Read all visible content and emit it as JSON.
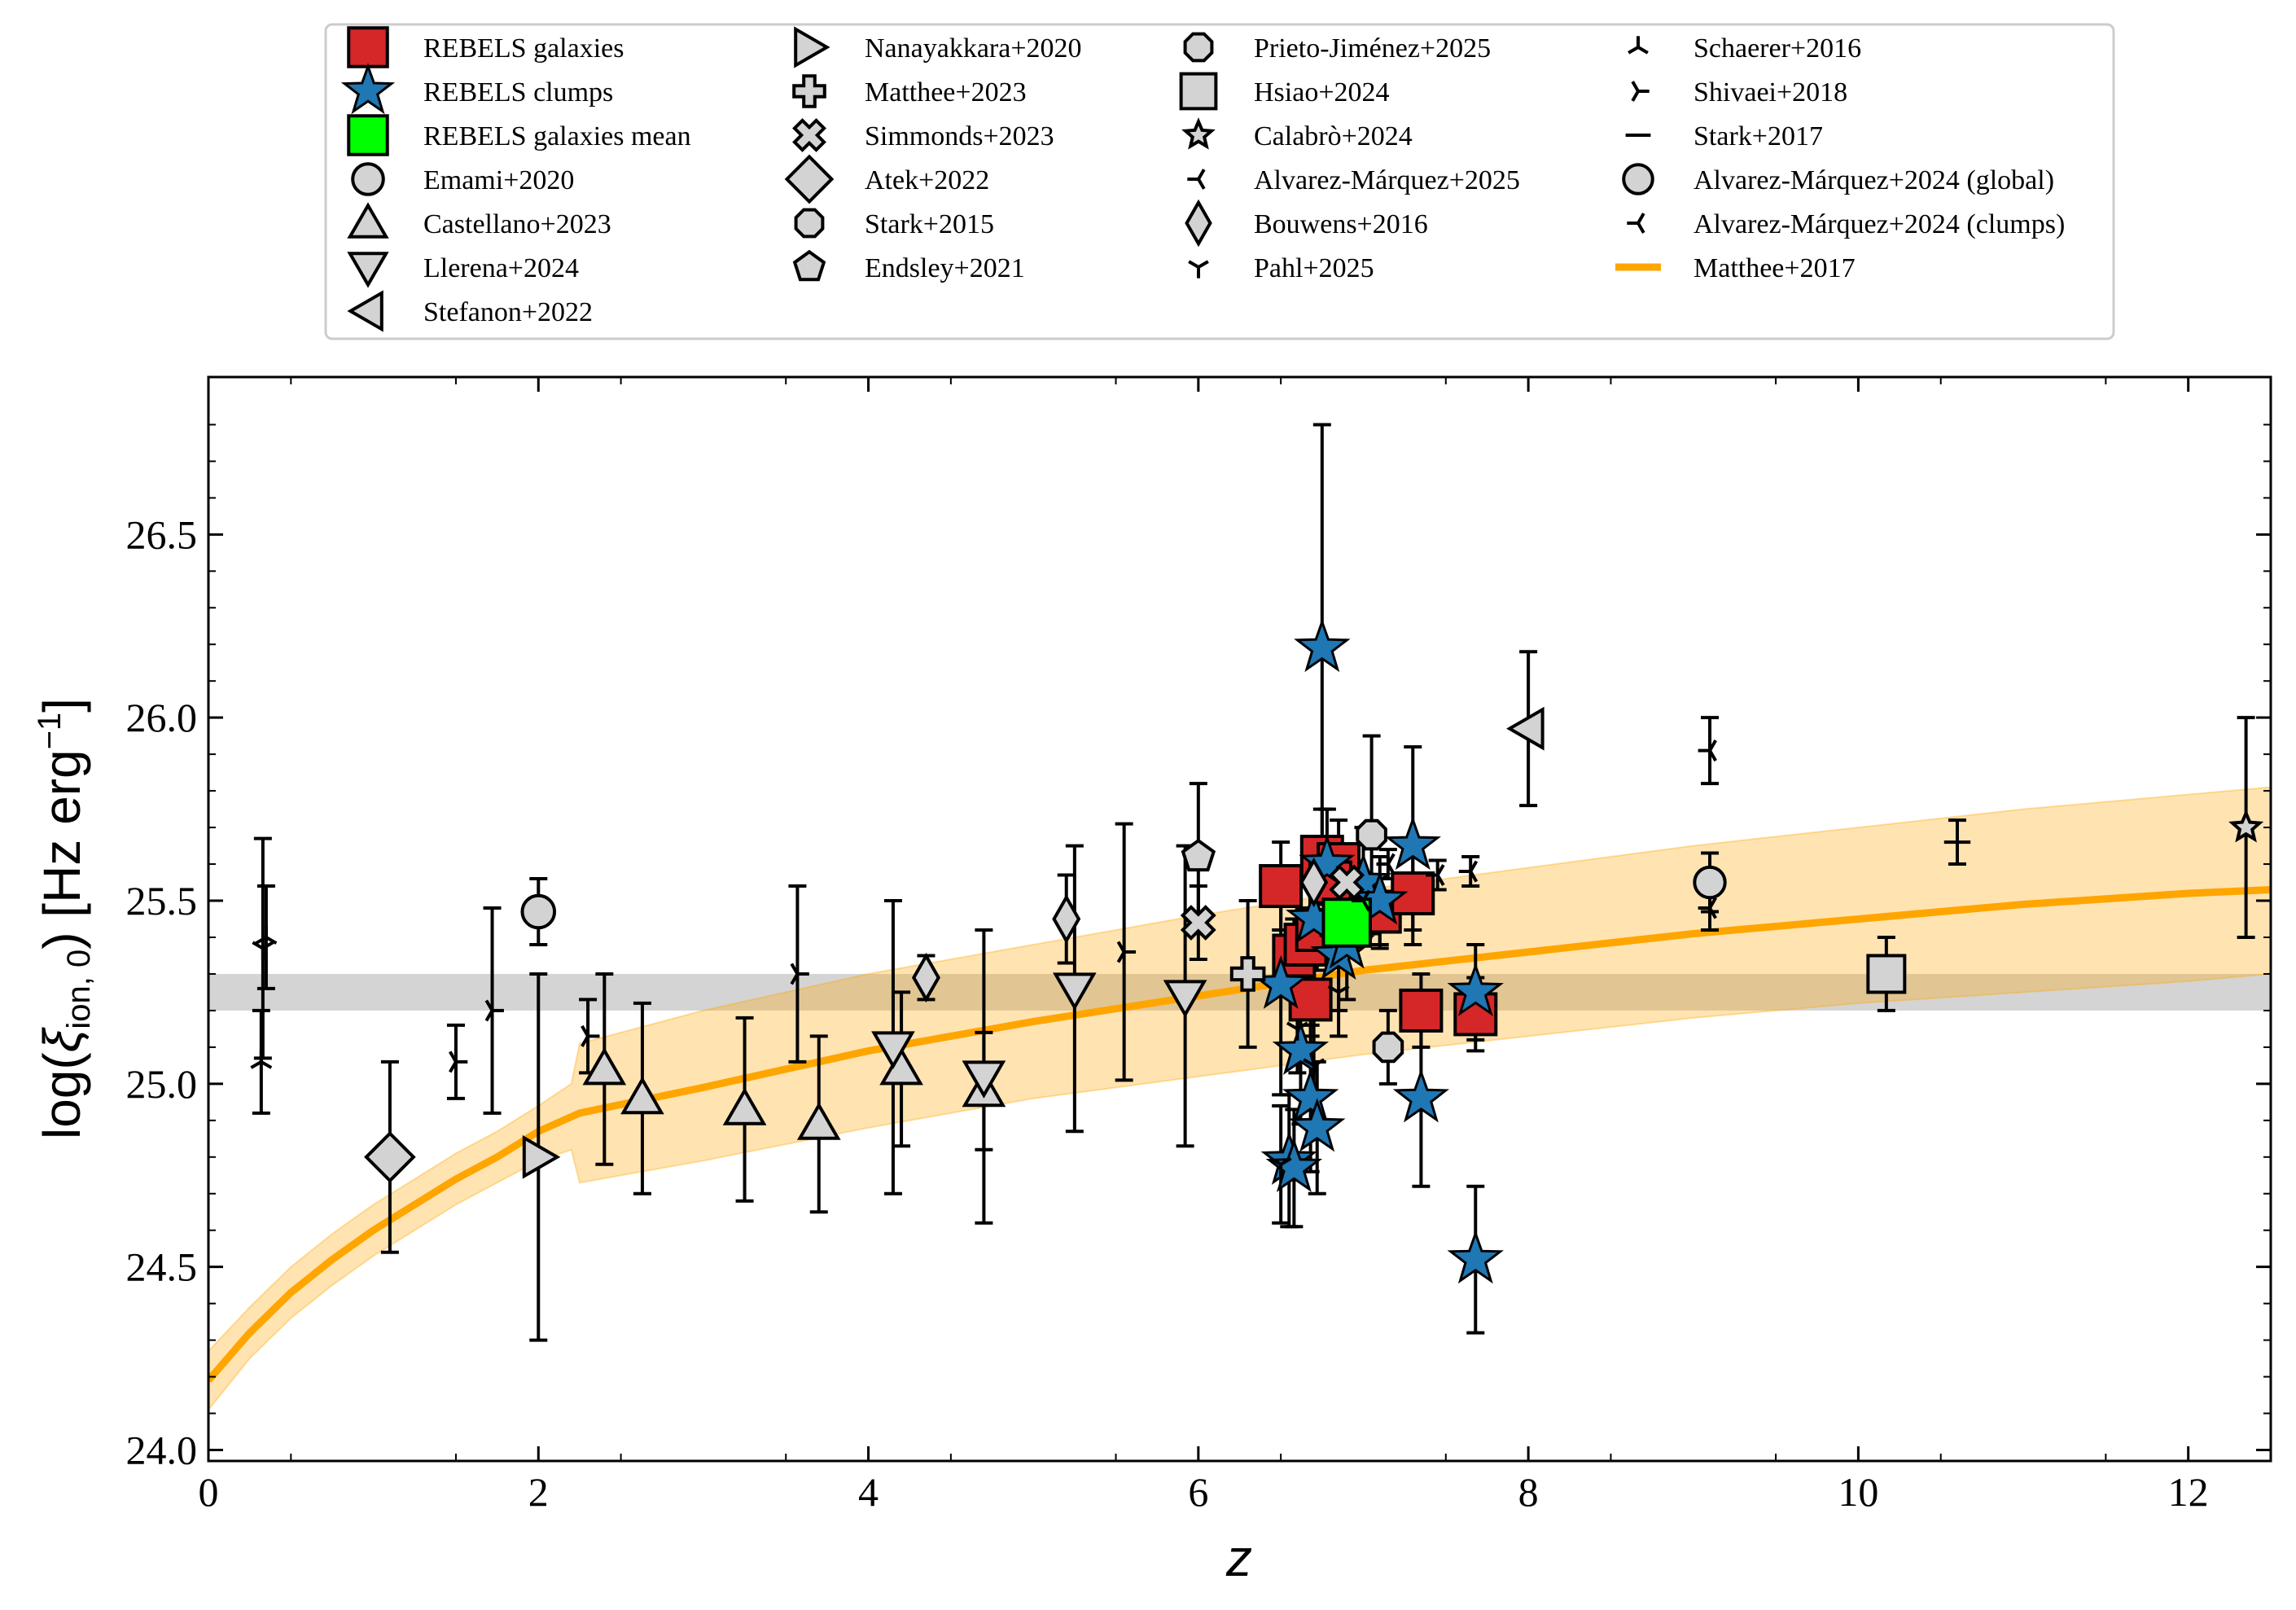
{
  "chart_data": {
    "type": "scatter",
    "title": "",
    "xlabel": "z",
    "ylabel": "log(ξion,0) [Hz erg−1]",
    "ylabel_parts": {
      "pre": "log(",
      "xi": "ξ",
      "sub": "ion, 0",
      "mid": ") [Hz erg",
      "sup": "−1",
      "post": "]"
    },
    "xlim": [
      0,
      12.5
    ],
    "ylim": [
      23.97,
      26.93
    ],
    "x_ticks": [
      0,
      2,
      4,
      6,
      8,
      10,
      12
    ],
    "y_ticks": [
      24.0,
      24.5,
      25.0,
      25.5,
      26.0,
      26.5
    ],
    "x_tick_labels": [
      "0",
      "2",
      "4",
      "6",
      "8",
      "10",
      "12"
    ],
    "y_tick_labels": [
      "24.0",
      "24.5",
      "25.0",
      "25.5",
      "26.0",
      "26.5"
    ],
    "grid": false,
    "legend_location": "top (outside plot)",
    "reference_band": {
      "y_low": 25.2,
      "y_high": 25.3,
      "color": "#b0b0b0"
    },
    "model_curve": {
      "name": "Matthee+2017",
      "color": "#ffa500",
      "x": [
        0,
        0.25,
        0.5,
        0.75,
        1.0,
        1.25,
        1.5,
        1.75,
        2.0,
        2.2,
        2.25,
        3,
        4,
        5,
        6,
        7,
        8,
        9,
        10,
        11,
        12,
        12.5
      ],
      "y": [
        24.19,
        24.32,
        24.43,
        24.52,
        24.6,
        24.67,
        24.74,
        24.8,
        24.87,
        24.91,
        24.92,
        24.99,
        25.09,
        25.17,
        25.24,
        25.31,
        25.36,
        25.41,
        25.45,
        25.49,
        25.52,
        25.53
      ],
      "y_low": [
        24.11,
        24.25,
        24.36,
        24.45,
        24.53,
        24.6,
        24.67,
        24.73,
        24.79,
        24.82,
        24.73,
        24.79,
        24.88,
        24.96,
        25.02,
        25.08,
        25.13,
        25.18,
        25.22,
        25.25,
        25.28,
        25.3
      ],
      "y_high": [
        24.27,
        24.39,
        24.5,
        24.59,
        24.67,
        24.74,
        24.81,
        24.87,
        24.94,
        25.0,
        25.11,
        25.2,
        25.3,
        25.38,
        25.46,
        25.53,
        25.59,
        25.65,
        25.7,
        25.75,
        25.79,
        25.81
      ]
    },
    "series": [
      {
        "name": "REBELS galaxies",
        "marker": "square",
        "color": "#d62728",
        "size": 1.0,
        "points": [
          [
            6.5,
            25.54,
            0.12
          ],
          [
            6.58,
            25.35,
            0.1
          ],
          [
            6.65,
            25.38,
            0.1
          ],
          [
            6.68,
            25.23,
            0.1
          ],
          [
            6.72,
            25.42,
            0.11
          ],
          [
            6.75,
            25.62,
            0.13
          ],
          [
            6.85,
            25.6,
            0.12
          ],
          [
            7.1,
            25.47,
            0.1
          ],
          [
            7.3,
            25.52,
            0.1
          ],
          [
            7.35,
            25.2,
            0.1
          ],
          [
            7.68,
            25.19,
            0.1
          ],
          [
            6.8,
            25.55,
            0.12
          ]
        ]
      },
      {
        "name": "REBELS clumps",
        "marker": "star",
        "color": "#1f77b4",
        "size": 1.0,
        "points": [
          [
            6.75,
            26.19,
            0.61
          ],
          [
            6.5,
            25.27,
            0.3
          ],
          [
            6.55,
            24.79,
            0.18
          ],
          [
            6.58,
            24.77,
            0.16
          ],
          [
            6.62,
            25.09,
            0.2
          ],
          [
            6.68,
            24.96,
            0.2
          ],
          [
            6.72,
            24.88,
            0.18
          ],
          [
            6.85,
            25.35,
            0.15
          ],
          [
            6.9,
            25.38,
            0.15
          ],
          [
            7.3,
            25.65,
            0.27
          ],
          [
            7.35,
            24.96,
            0.24
          ],
          [
            7.68,
            24.52,
            0.2
          ],
          [
            7.68,
            25.25,
            0.13
          ],
          [
            6.78,
            25.6,
            0.15
          ],
          [
            7.0,
            25.55,
            0.15
          ],
          [
            7.1,
            25.5,
            0.12
          ],
          [
            6.7,
            25.45,
            0.2
          ]
        ]
      },
      {
        "name": "REBELS galaxies mean",
        "marker": "square",
        "color": "#00ff00",
        "size": 1.15,
        "points": [
          [
            6.9,
            25.44,
            0.06
          ]
        ]
      },
      {
        "name": "Emami+2020",
        "marker": "circle",
        "color": "#d3d3d3",
        "size": 0.9,
        "points": [
          [
            2.0,
            25.47,
            0.09
          ]
        ]
      },
      {
        "name": "Castellano+2023",
        "marker": "triangle-up",
        "color": "#d3d3d3",
        "size": 1.0,
        "points": [
          [
            2.4,
            25.04,
            0.26
          ],
          [
            2.63,
            24.96,
            0.26
          ],
          [
            3.25,
            24.93,
            0.25
          ],
          [
            3.7,
            24.89,
            0.24
          ],
          [
            4.2,
            25.04,
            0.21
          ],
          [
            4.7,
            24.98,
            0.16
          ]
        ]
      },
      {
        "name": "Llerena+2024",
        "marker": "triangle-down",
        "color": "#d3d3d3",
        "size": 1.0,
        "points": [
          [
            4.15,
            25.1,
            0.4
          ],
          [
            4.7,
            25.02,
            0.4
          ],
          [
            5.25,
            25.26,
            0.39
          ],
          [
            5.92,
            25.24,
            0.41
          ]
        ]
      },
      {
        "name": "Stefanon+2022",
        "marker": "triangle-left",
        "color": "#d3d3d3",
        "size": 1.0,
        "points": [
          [
            8.0,
            25.97,
            0.21
          ]
        ]
      },
      {
        "name": "Nanayakkara+2020",
        "marker": "triangle-right",
        "color": "#d3d3d3",
        "size": 1.0,
        "points": [
          [
            2.0,
            24.8,
            0.5
          ]
        ]
      },
      {
        "name": "Matthee+2023",
        "marker": "plus",
        "color": "#d3d3d3",
        "size": 0.9,
        "points": [
          [
            6.3,
            25.3,
            0.2
          ]
        ]
      },
      {
        "name": "Simmonds+2023",
        "marker": "x",
        "color": "#d3d3d3",
        "size": 0.9,
        "points": [
          [
            6.0,
            25.44,
            0.1
          ],
          [
            6.9,
            25.55,
            0.1
          ]
        ]
      },
      {
        "name": "Atek+2022",
        "marker": "diamond",
        "color": "#d3d3d3",
        "size": 1.0,
        "points": [
          [
            1.1,
            24.8,
            0.26
          ]
        ]
      },
      {
        "name": "Stark+2015",
        "marker": "octagon",
        "color": "#d3d3d3",
        "size": 0.85,
        "points": [
          [
            7.15,
            25.1,
            0.1
          ]
        ]
      },
      {
        "name": "Endsley+2021",
        "marker": "pentagon",
        "color": "#d3d3d3",
        "size": 0.9,
        "points": [
          [
            6.0,
            25.62,
            0.2
          ]
        ]
      },
      {
        "name": "Prieto-Jiménez+2025",
        "marker": "octagon",
        "color": "#d3d3d3",
        "size": 0.85,
        "points": [
          [
            7.05,
            25.68,
            0.27
          ]
        ]
      },
      {
        "name": "Hsiao+2024",
        "marker": "square",
        "color": "#d3d3d3",
        "size": 0.9,
        "points": [
          [
            10.17,
            25.3,
            0.1
          ]
        ]
      },
      {
        "name": "Calabrò+2024",
        "marker": "star-open",
        "color": "#d3d3d3",
        "size": 0.8,
        "points": [
          [
            12.35,
            25.7,
            0.3
          ]
        ]
      },
      {
        "name": "Alvarez-Márquez+2025",
        "marker": "tri-left",
        "color": "#000000",
        "size": 0.9,
        "points": [
          [
            7.15,
            25.6,
            0.04
          ],
          [
            7.65,
            25.58,
            0.04
          ],
          [
            7.45,
            25.57,
            0.04
          ],
          [
            7.0,
            25.5,
            0.05
          ]
        ]
      },
      {
        "name": "Bouwens+2016",
        "marker": "thin-diamond",
        "color": "#d3d3d3",
        "size": 0.95,
        "points": [
          [
            4.35,
            25.29,
            0.06
          ],
          [
            5.2,
            25.45,
            0.12
          ],
          [
            6.7,
            25.55,
            0.1
          ]
        ]
      },
      {
        "name": "Pahl+2025",
        "marker": "tri-down",
        "color": "#000000",
        "size": 0.9,
        "points": [
          [
            0.33,
            25.37,
            0.3
          ],
          [
            6.7,
            25.05,
            0.2
          ],
          [
            6.5,
            24.78,
            0.16
          ],
          [
            6.6,
            25.15,
            0.12
          ],
          [
            6.85,
            25.25,
            0.12
          ]
        ]
      },
      {
        "name": "Schaerer+2016",
        "marker": "tri-up",
        "color": "#000000",
        "size": 0.9,
        "points": [
          [
            0.32,
            25.06,
            0.14
          ],
          [
            0.35,
            25.4,
            0.14
          ]
        ]
      },
      {
        "name": "Shivaei+2018",
        "marker": "tri-right",
        "color": "#000000",
        "size": 0.9,
        "points": [
          [
            2.3,
            25.13,
            0.1
          ],
          [
            1.5,
            25.06,
            0.1
          ],
          [
            1.72,
            25.2,
            0.28
          ],
          [
            3.57,
            25.3,
            0.24
          ],
          [
            5.55,
            25.36,
            0.35
          ]
        ]
      },
      {
        "name": "Stark+2017",
        "marker": "hline",
        "color": "#000000",
        "size": 0.9,
        "points": [
          [
            10.6,
            25.66,
            0.06
          ]
        ]
      },
      {
        "name": "Alvarez-Márquez+2024 (global)",
        "marker": "circle",
        "color": "#d3d3d3",
        "size": 0.85,
        "points": [
          [
            9.1,
            25.55,
            0.08
          ]
        ]
      },
      {
        "name": "Alvarez-Márquez+2024 (clumps)",
        "marker": "tri-left",
        "color": "#000000",
        "size": 0.9,
        "points": [
          [
            9.1,
            25.91,
            0.09
          ],
          [
            9.1,
            25.48,
            0.06
          ]
        ]
      }
    ],
    "legend": [
      [
        "REBELS galaxies",
        "REBELS clumps",
        "REBELS galaxies mean",
        "Emami+2020",
        "Castellano+2023",
        "Llerena+2024",
        "Stefanon+2022"
      ],
      [
        "Nanayakkara+2020",
        "Matthee+2023",
        "Simmonds+2023",
        "Atek+2022",
        "Stark+2015",
        "Endsley+2021"
      ],
      [
        "Prieto-Jiménez+2025",
        "Hsiao+2024",
        "Calabrò+2024",
        "Alvarez-Márquez+2025",
        "Bouwens+2016",
        "Pahl+2025"
      ],
      [
        "Schaerer+2016",
        "Shivaei+2018",
        "Stark+2017",
        "Alvarez-Márquez+2024 (global)",
        "Alvarez-Márquez+2024 (clumps)",
        "Matthee+2017"
      ]
    ]
  }
}
